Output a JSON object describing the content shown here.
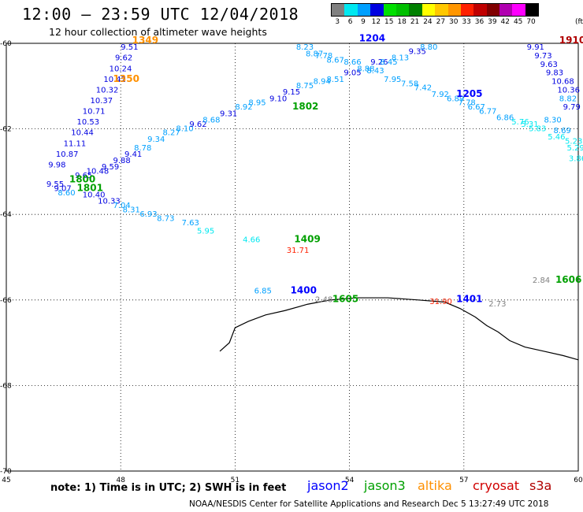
{
  "title": "12:00 — 23:59 UTC 12/04/2018",
  "subtitle": "12 hour collection of altimeter wave heights",
  "legend": {
    "unit": "(ft)",
    "labels": [
      "3",
      "6",
      "9",
      "12",
      "15",
      "18",
      "21",
      "24",
      "27",
      "30",
      "33",
      "36",
      "39",
      "42",
      "45",
      "70"
    ],
    "colors": [
      "#808080",
      "#00e8f0",
      "#00a0ff",
      "#0000e0",
      "#00e000",
      "#00c000",
      "#008000",
      "#ffff00",
      "#ffc800",
      "#ff9600",
      "#ff2000",
      "#c00000",
      "#800000",
      "#b000b0",
      "#ff00ff",
      "#000000"
    ]
  },
  "axes": {
    "x_labels": [
      "45",
      "48",
      "51",
      "54",
      "57",
      "60"
    ],
    "y_labels": [
      "-60",
      "-62",
      "-64",
      "-66",
      "-68",
      "-70"
    ]
  },
  "note": "note:  1) Time is in UTC; 2) SWH is in feet",
  "satellites": [
    {
      "name": "jason2",
      "color": "#0000ff"
    },
    {
      "name": "jason3",
      "color": "#00a000"
    },
    {
      "name": "altika",
      "color": "#ff9000"
    },
    {
      "name": "cryosat",
      "color": "#d00000"
    },
    {
      "name": "s3a",
      "color": "#b00000"
    }
  ],
  "credit": "NOAA/NESDIS Center for Satellite Applications and Research    Dec  5 13:27:49 UTC 2018",
  "chart_data": {
    "type": "scatter",
    "xlim": [
      45,
      60
    ],
    "ylim": [
      -70,
      -60
    ],
    "grid": true,
    "points": [
      {
        "lon": 48.0,
        "lat": -60.15,
        "v": "9.51",
        "c": "#0000e0"
      },
      {
        "lon": 47.85,
        "lat": -60.4,
        "v": "9.62",
        "c": "#0000e0"
      },
      {
        "lon": 47.7,
        "lat": -60.65,
        "v": "10.24",
        "c": "#0000e0"
      },
      {
        "lon": 47.55,
        "lat": -60.9,
        "v": "10.42",
        "c": "#0000e0"
      },
      {
        "lon": 47.35,
        "lat": -61.15,
        "v": "10.32",
        "c": "#0000e0"
      },
      {
        "lon": 47.2,
        "lat": -61.4,
        "v": "10.37",
        "c": "#0000e0"
      },
      {
        "lon": 47.0,
        "lat": -61.65,
        "v": "10.71",
        "c": "#0000e0"
      },
      {
        "lon": 46.85,
        "lat": -61.9,
        "v": "10.53",
        "c": "#0000e0"
      },
      {
        "lon": 46.7,
        "lat": -62.15,
        "v": "10.44",
        "c": "#0000e0"
      },
      {
        "lon": 46.5,
        "lat": -62.4,
        "v": "11.11",
        "c": "#0000e0"
      },
      {
        "lon": 46.3,
        "lat": -62.65,
        "v": "10.87",
        "c": "#0000e0"
      },
      {
        "lon": 46.1,
        "lat": -62.9,
        "v": "9.98",
        "c": "#0000e0"
      },
      {
        "lon": 46.05,
        "lat": -63.35,
        "v": "9.55",
        "c": "#0000e0"
      },
      {
        "lon": 46.25,
        "lat": -63.45,
        "v": "9.07",
        "c": "#0000e0"
      },
      {
        "lon": 46.8,
        "lat": -63.15,
        "v": "9.65",
        "c": "#0000e0"
      },
      {
        "lon": 47.1,
        "lat": -63.05,
        "v": "10.48",
        "c": "#0000e0"
      },
      {
        "lon": 47.5,
        "lat": -62.95,
        "v": "9.59",
        "c": "#0000e0"
      },
      {
        "lon": 47.8,
        "lat": -62.8,
        "v": "9.88",
        "c": "#0000e0"
      },
      {
        "lon": 48.1,
        "lat": -62.65,
        "v": "9.41",
        "c": "#0000e0"
      },
      {
        "lon": 47.0,
        "lat": -63.6,
        "v": "10.40",
        "c": "#0000e0"
      },
      {
        "lon": 47.4,
        "lat": -63.75,
        "v": "10.33",
        "c": "#0000e0"
      },
      {
        "lon": 46.35,
        "lat": -63.55,
        "v": "8.60",
        "c": "#00a0ff"
      },
      {
        "lon": 47.8,
        "lat": -63.85,
        "v": "7.04",
        "c": "#00a0ff"
      },
      {
        "lon": 48.05,
        "lat": -63.95,
        "v": "8.31",
        "c": "#00a0ff"
      },
      {
        "lon": 48.5,
        "lat": -64.05,
        "v": "6.93",
        "c": "#00a0ff"
      },
      {
        "lon": 48.95,
        "lat": -64.15,
        "v": "8.73",
        "c": "#00a0ff"
      },
      {
        "lon": 49.6,
        "lat": -64.25,
        "v": "7.63",
        "c": "#00a0ff"
      },
      {
        "lon": 50.0,
        "lat": -64.45,
        "v": "5.95",
        "c": "#00e8f0"
      },
      {
        "lon": 51.2,
        "lat": -64.65,
        "v": "4.66",
        "c": "#00e8f0"
      },
      {
        "lon": 48.35,
        "lat": -62.5,
        "v": "8.78",
        "c": "#00a0ff"
      },
      {
        "lon": 48.7,
        "lat": -62.3,
        "v": "9.34",
        "c": "#00a0ff"
      },
      {
        "lon": 49.1,
        "lat": -62.15,
        "v": "8.27",
        "c": "#00a0ff"
      },
      {
        "lon": 49.45,
        "lat": -62.05,
        "v": "8.10",
        "c": "#00a0ff"
      },
      {
        "lon": 49.8,
        "lat": -61.95,
        "v": "9.62",
        "c": "#0000e0"
      },
      {
        "lon": 50.15,
        "lat": -61.85,
        "v": "8.68",
        "c": "#00a0ff"
      },
      {
        "lon": 50.6,
        "lat": -61.7,
        "v": "9.31",
        "c": "#0000e0"
      },
      {
        "lon": 51.0,
        "lat": -61.55,
        "v": "8.92",
        "c": "#00a0ff"
      },
      {
        "lon": 51.35,
        "lat": -61.45,
        "v": "8.95",
        "c": "#00a0ff"
      },
      {
        "lon": 51.9,
        "lat": -61.35,
        "v": "9.10",
        "c": "#0000e0"
      },
      {
        "lon": 52.25,
        "lat": -61.2,
        "v": "9.15",
        "c": "#0000e0"
      },
      {
        "lon": 52.6,
        "lat": -61.05,
        "v": "8.75",
        "c": "#00a0ff"
      },
      {
        "lon": 53.05,
        "lat": -60.95,
        "v": "8.94",
        "c": "#00a0ff"
      },
      {
        "lon": 53.4,
        "lat": -60.9,
        "v": "8.51",
        "c": "#00a0ff"
      },
      {
        "lon": 53.85,
        "lat": -60.75,
        "v": "9.05",
        "c": "#0000e0"
      },
      {
        "lon": 54.2,
        "lat": -60.65,
        "v": "8.88",
        "c": "#00a0ff"
      },
      {
        "lon": 54.55,
        "lat": -60.5,
        "v": "9.26",
        "c": "#0000e0"
      },
      {
        "lon": 53.85,
        "lat": -60.5,
        "v": "8.66",
        "c": "#00a0ff"
      },
      {
        "lon": 53.4,
        "lat": -60.45,
        "v": "8.67",
        "c": "#00a0ff"
      },
      {
        "lon": 52.6,
        "lat": -60.15,
        "v": "8.23",
        "c": "#00a0ff"
      },
      {
        "lon": 52.85,
        "lat": -60.3,
        "v": "8.87",
        "c": "#00a0ff"
      },
      {
        "lon": 53.1,
        "lat": -60.35,
        "v": "7.78",
        "c": "#00a0ff"
      },
      {
        "lon": 54.8,
        "lat": -60.5,
        "v": "8.45",
        "c": "#00a0ff"
      },
      {
        "lon": 55.1,
        "lat": -60.4,
        "v": "8.13",
        "c": "#00a0ff"
      },
      {
        "lon": 55.55,
        "lat": -60.25,
        "v": "9.35",
        "c": "#0000e0"
      },
      {
        "lon": 55.85,
        "lat": -60.15,
        "v": "8.80",
        "c": "#00a0ff"
      },
      {
        "lon": 54.45,
        "lat": -60.7,
        "v": "8.43",
        "c": "#00a0ff"
      },
      {
        "lon": 54.9,
        "lat": -60.9,
        "v": "7.95",
        "c": "#00a0ff"
      },
      {
        "lon": 55.35,
        "lat": -61.0,
        "v": "7.58",
        "c": "#00a0ff"
      },
      {
        "lon": 55.7,
        "lat": -61.1,
        "v": "7.42",
        "c": "#00a0ff"
      },
      {
        "lon": 56.15,
        "lat": -61.25,
        "v": "7.92",
        "c": "#00a0ff"
      },
      {
        "lon": 56.55,
        "lat": -61.35,
        "v": "6.89",
        "c": "#00a0ff"
      },
      {
        "lon": 56.85,
        "lat": -61.45,
        "v": "7.78",
        "c": "#00a0ff"
      },
      {
        "lon": 57.1,
        "lat": -61.55,
        "v": "6.67",
        "c": "#00a0ff"
      },
      {
        "lon": 57.4,
        "lat": -61.65,
        "v": "6.77",
        "c": "#00a0ff"
      },
      {
        "lon": 57.85,
        "lat": -61.8,
        "v": "6.86",
        "c": "#00a0ff"
      },
      {
        "lon": 58.25,
        "lat": -61.9,
        "v": "5.76",
        "c": "#00e8f0"
      },
      {
        "lon": 58.5,
        "lat": -61.95,
        "v": "5.31",
        "c": "#00e8f0"
      },
      {
        "lon": 58.7,
        "lat": -62.05,
        "v": "5.83",
        "c": "#00e8f0"
      },
      {
        "lon": 59.2,
        "lat": -62.25,
        "v": "5.46",
        "c": "#00e8f0"
      },
      {
        "lon": 59.65,
        "lat": -62.35,
        "v": "5.23",
        "c": "#00e8f0"
      },
      {
        "lon": 59.7,
        "lat": -62.5,
        "v": "5.29",
        "c": "#00e8f0"
      },
      {
        "lon": 59.75,
        "lat": -62.75,
        "v": "3.86",
        "c": "#00e8f0"
      },
      {
        "lon": 59.35,
        "lat": -62.1,
        "v": "8.69",
        "c": "#00a0ff"
      },
      {
        "lon": 59.1,
        "lat": -61.85,
        "v": "8.30",
        "c": "#00a0ff"
      },
      {
        "lon": 58.65,
        "lat": -60.15,
        "v": "9.91",
        "c": "#0000e0"
      },
      {
        "lon": 58.85,
        "lat": -60.35,
        "v": "9.73",
        "c": "#0000e0"
      },
      {
        "lon": 59.0,
        "lat": -60.55,
        "v": "9.63",
        "c": "#0000e0"
      },
      {
        "lon": 59.15,
        "lat": -60.75,
        "v": "9.83",
        "c": "#0000e0"
      },
      {
        "lon": 59.3,
        "lat": -60.95,
        "v": "10.68",
        "c": "#0000e0"
      },
      {
        "lon": 59.45,
        "lat": -61.15,
        "v": "10.36",
        "c": "#0000e0"
      },
      {
        "lon": 59.5,
        "lat": -61.35,
        "v": "8.82",
        "c": "#00a0ff"
      },
      {
        "lon": 59.6,
        "lat": -61.55,
        "v": "9.79",
        "c": "#0000e0"
      },
      {
        "lon": 51.5,
        "lat": -65.85,
        "v": "6.85",
        "c": "#00a0ff"
      },
      {
        "lon": 53.1,
        "lat": -66.05,
        "v": "2.48",
        "c": "#808080"
      },
      {
        "lon": 56.1,
        "lat": -66.1,
        "v": "31.90",
        "c": "#ff2000"
      },
      {
        "lon": 57.65,
        "lat": -66.15,
        "v": "2.73",
        "c": "#808080"
      },
      {
        "lon": 58.8,
        "lat": -65.6,
        "v": "2.84",
        "c": "#808080"
      },
      {
        "lon": 52.35,
        "lat": -64.9,
        "v": "31.71",
        "c": "#ff2000"
      }
    ],
    "pass_times": [
      {
        "lon": 48.3,
        "lat": -60.0,
        "t": "1349",
        "c": "#ff9000"
      },
      {
        "lon": 47.8,
        "lat": -60.9,
        "t": "1350",
        "c": "#ff9000"
      },
      {
        "lon": 54.25,
        "lat": -59.95,
        "t": "1204",
        "c": "#0000ff"
      },
      {
        "lon": 52.5,
        "lat": -61.55,
        "t": "1802",
        "c": "#00a000"
      },
      {
        "lon": 56.8,
        "lat": -61.25,
        "t": "1205",
        "c": "#0000ff"
      },
      {
        "lon": 59.5,
        "lat": -60.0,
        "t": "1910",
        "c": "#b00000"
      },
      {
        "lon": 46.85,
        "lat": -63.45,
        "t": "1801",
        "c": "#00a000"
      },
      {
        "lon": 46.65,
        "lat": -63.25,
        "t": "1800",
        "c": "#00a000"
      },
      {
        "lon": 52.55,
        "lat": -64.65,
        "t": "1409",
        "c": "#00a000"
      },
      {
        "lon": 52.45,
        "lat": -65.85,
        "t": "1400",
        "c": "#0000ff"
      },
      {
        "lon": 53.55,
        "lat": -66.05,
        "t": "1605",
        "c": "#00a000"
      },
      {
        "lon": 56.8,
        "lat": -66.05,
        "t": "1401",
        "c": "#0000ff"
      },
      {
        "lon": 59.4,
        "lat": -65.6,
        "t": "1606",
        "c": "#00a000"
      }
    ],
    "coastline": [
      [
        50.6,
        -67.2
      ],
      [
        50.85,
        -67.0
      ],
      [
        51.0,
        -66.65
      ],
      [
        51.35,
        -66.5
      ],
      [
        51.8,
        -66.35
      ],
      [
        52.3,
        -66.25
      ],
      [
        52.9,
        -66.1
      ],
      [
        53.5,
        -66.0
      ],
      [
        54.2,
        -65.95
      ],
      [
        55.0,
        -65.95
      ],
      [
        55.8,
        -66.0
      ],
      [
        56.5,
        -66.05
      ],
      [
        56.9,
        -66.2
      ],
      [
        57.3,
        -66.4
      ],
      [
        57.6,
        -66.6
      ],
      [
        57.9,
        -66.75
      ],
      [
        58.2,
        -66.95
      ],
      [
        58.6,
        -67.1
      ],
      [
        59.1,
        -67.2
      ],
      [
        59.6,
        -67.3
      ],
      [
        60.0,
        -67.4
      ]
    ]
  }
}
